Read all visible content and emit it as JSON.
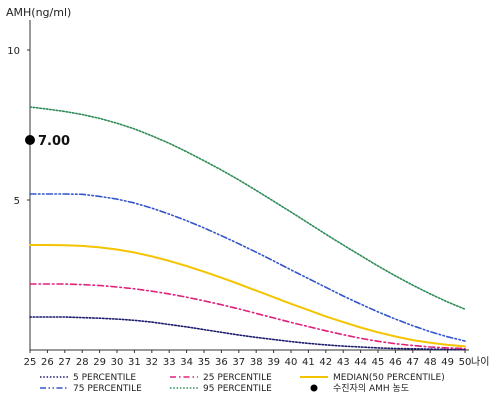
{
  "chart_data": {
    "type": "line",
    "ylabel": "AMH(ng/ml)",
    "xlabel": "나이",
    "xlim": [
      25,
      50
    ],
    "ylim": [
      0,
      11
    ],
    "y_ticks": [
      5,
      10
    ],
    "x": [
      25,
      26,
      27,
      28,
      29,
      30,
      31,
      32,
      33,
      34,
      35,
      36,
      37,
      38,
      39,
      40,
      41,
      42,
      43,
      44,
      45,
      46,
      47,
      48,
      49,
      50
    ],
    "series": [
      {
        "name": "5 PERCENTILE",
        "color": "#1a1a6e",
        "dash": "dot",
        "values": [
          1.1,
          1.1,
          1.1,
          1.08,
          1.06,
          1.03,
          0.99,
          0.93,
          0.85,
          0.77,
          0.68,
          0.59,
          0.5,
          0.42,
          0.35,
          0.28,
          0.22,
          0.17,
          0.13,
          0.1,
          0.07,
          0.05,
          0.04,
          0.03,
          0.02,
          0.02
        ]
      },
      {
        "name": "25 PERCENTILE",
        "color": "#e0207a",
        "dash": "dashdot",
        "values": [
          2.2,
          2.2,
          2.2,
          2.18,
          2.15,
          2.1,
          2.04,
          1.96,
          1.87,
          1.76,
          1.64,
          1.51,
          1.37,
          1.22,
          1.07,
          0.92,
          0.78,
          0.64,
          0.51,
          0.39,
          0.29,
          0.21,
          0.15,
          0.1,
          0.07,
          0.05
        ]
      },
      {
        "name": "MEDIAN(50 PERCENTILE)",
        "color": "#f5c400",
        "dash": "solid",
        "values": [
          3.5,
          3.5,
          3.49,
          3.47,
          3.42,
          3.35,
          3.25,
          3.12,
          2.97,
          2.8,
          2.61,
          2.41,
          2.2,
          1.98,
          1.76,
          1.54,
          1.33,
          1.12,
          0.93,
          0.75,
          0.59,
          0.45,
          0.33,
          0.24,
          0.17,
          0.12
        ]
      },
      {
        "name": "75 PERCENTILE",
        "color": "#3355cc",
        "dash": "dashdotdot",
        "values": [
          5.2,
          5.2,
          5.2,
          5.19,
          5.12,
          5.03,
          4.9,
          4.73,
          4.53,
          4.31,
          4.07,
          3.81,
          3.54,
          3.26,
          2.97,
          2.67,
          2.38,
          2.09,
          1.8,
          1.53,
          1.27,
          1.03,
          0.81,
          0.61,
          0.44,
          0.3
        ]
      },
      {
        "name": "95 PERCENTILE",
        "color": "#2e8b57",
        "dash": "dot",
        "values": [
          8.1,
          8.03,
          7.95,
          7.85,
          7.72,
          7.56,
          7.37,
          7.14,
          6.89,
          6.61,
          6.31,
          6.0,
          5.67,
          5.32,
          4.96,
          4.6,
          4.23,
          3.86,
          3.5,
          3.15,
          2.8,
          2.47,
          2.16,
          1.87,
          1.6,
          1.36
        ]
      }
    ],
    "patient": {
      "name": "수진자의 AMH 농도",
      "x": 25,
      "y": 7.0,
      "label": "7.00",
      "color": "#000000"
    },
    "legend_placement": "bottom"
  }
}
